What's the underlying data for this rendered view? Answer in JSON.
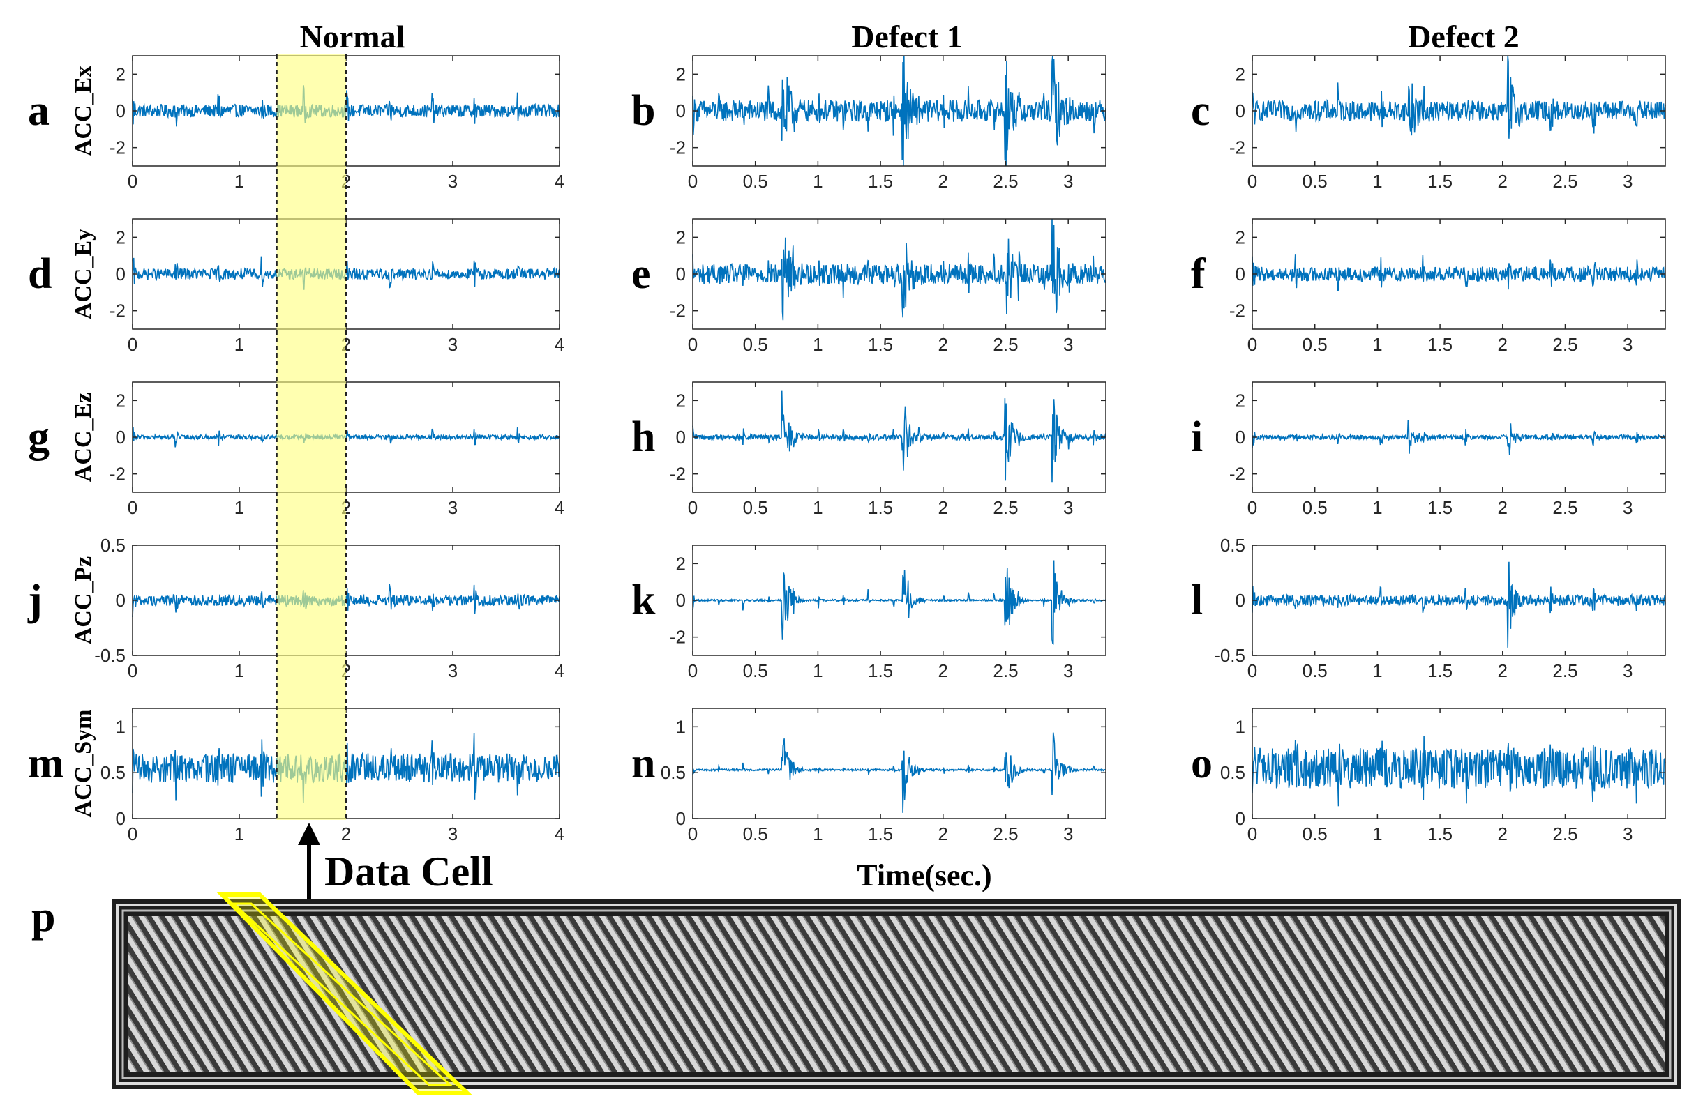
{
  "figure": {
    "column_titles": [
      "Normal",
      "Defect 1",
      "Defect 2"
    ],
    "x_axis_label": "Time(sec.)",
    "callout_label": "Data Cell",
    "panel_p_label": "p",
    "highlight_window_sec": [
      1.35,
      2.0
    ],
    "colors": {
      "signal": "#0072BD",
      "highlight": "#FFFF80",
      "highlight_edge": "#FFFF00",
      "axes": "#262626"
    }
  },
  "chart_data": [
    {
      "panel": "a",
      "type": "line",
      "row": 0,
      "col": 0,
      "ylabel": "ACC_Ex",
      "xlim": [
        0,
        4
      ],
      "ylim": [
        -3,
        3
      ],
      "xticks": [
        "0",
        "1",
        "2",
        "3",
        "4"
      ],
      "yticks": [
        "-2",
        "0",
        "2"
      ],
      "series": [
        {
          "name": "",
          "signal": {
            "base": 0,
            "noise": 0.35,
            "peak_amp": 1.1,
            "period": 0.4,
            "peak_times": []
          }
        }
      ]
    },
    {
      "panel": "b",
      "type": "line",
      "row": 0,
      "col": 1,
      "xlim": [
        0,
        3.3
      ],
      "ylim": [
        -3,
        3
      ],
      "xticks": [
        "0",
        "0.5",
        "1",
        "1.5",
        "2",
        "2.5",
        "3"
      ],
      "yticks": [
        "-2",
        "0",
        "2"
      ],
      "series": [
        {
          "name": "",
          "signal": {
            "base": 0,
            "noise": 0.6,
            "peak_amp": 1.0,
            "period": 0.2,
            "peak_times": [
              0.72,
              1.68,
              2.5,
              2.88
            ],
            "burst_amp": 3.0
          }
        }
      ]
    },
    {
      "panel": "c",
      "type": "line",
      "row": 0,
      "col": 2,
      "xlim": [
        0,
        3.3
      ],
      "ylim": [
        -3,
        3
      ],
      "xticks": [
        "0",
        "0.5",
        "1",
        "1.5",
        "2",
        "2.5",
        "3"
      ],
      "yticks": [
        "-2",
        "0",
        "2"
      ],
      "series": [
        {
          "name": "",
          "signal": {
            "base": 0,
            "noise": 0.55,
            "peak_amp": 1.2,
            "period": 0.34,
            "peak_times": [
              1.25,
              2.05
            ],
            "burst_amp": 2.3
          }
        }
      ]
    },
    {
      "panel": "d",
      "type": "line",
      "row": 1,
      "col": 0,
      "ylabel": "ACC_Ey",
      "xlim": [
        0,
        4
      ],
      "ylim": [
        -3,
        3
      ],
      "xticks": [
        "0",
        "1",
        "2",
        "3",
        "4"
      ],
      "yticks": [
        "-2",
        "0",
        "2"
      ],
      "series": [
        {
          "name": "",
          "signal": {
            "base": 0,
            "noise": 0.3,
            "peak_amp": 0.9,
            "period": 0.4,
            "peak_times": []
          }
        }
      ]
    },
    {
      "panel": "e",
      "type": "line",
      "row": 1,
      "col": 1,
      "xlim": [
        0,
        3.3
      ],
      "ylim": [
        -3,
        3
      ],
      "xticks": [
        "0",
        "0.5",
        "1",
        "1.5",
        "2",
        "2.5",
        "3"
      ],
      "yticks": [
        "-2",
        "0",
        "2"
      ],
      "series": [
        {
          "name": "",
          "signal": {
            "base": 0,
            "noise": 0.55,
            "peak_amp": 0.9,
            "period": 0.2,
            "peak_times": [
              0.72,
              1.68,
              2.5,
              2.88
            ],
            "burst_amp": 2.9
          }
        }
      ]
    },
    {
      "panel": "f",
      "type": "line",
      "row": 1,
      "col": 2,
      "xlim": [
        0,
        3.3
      ],
      "ylim": [
        -3,
        3
      ],
      "xticks": [
        "0",
        "0.5",
        "1",
        "1.5",
        "2",
        "2.5",
        "3"
      ],
      "yticks": [
        "-2",
        "0",
        "2"
      ],
      "series": [
        {
          "name": "",
          "signal": {
            "base": 0,
            "noise": 0.4,
            "peak_amp": 0.8,
            "period": 0.34,
            "peak_times": []
          }
        }
      ]
    },
    {
      "panel": "g",
      "type": "line",
      "row": 2,
      "col": 0,
      "ylabel": "ACC_Ez",
      "xlim": [
        0,
        4
      ],
      "ylim": [
        -3,
        3
      ],
      "xticks": [
        "0",
        "1",
        "2",
        "3",
        "4"
      ],
      "yticks": [
        "-2",
        "0",
        "2"
      ],
      "series": [
        {
          "name": "",
          "signal": {
            "base": 0,
            "noise": 0.12,
            "peak_amp": 0.5,
            "period": 0.4,
            "peak_times": []
          }
        }
      ]
    },
    {
      "panel": "h",
      "type": "line",
      "row": 2,
      "col": 1,
      "xlim": [
        0,
        3.3
      ],
      "ylim": [
        -3,
        3
      ],
      "xticks": [
        "0",
        "0.5",
        "1",
        "1.5",
        "2",
        "2.5",
        "3"
      ],
      "yticks": [
        "-2",
        "0",
        "2"
      ],
      "series": [
        {
          "name": "",
          "signal": {
            "base": 0,
            "noise": 0.15,
            "peak_amp": 0.5,
            "period": 0.2,
            "peak_times": [
              0.72,
              1.68,
              2.5,
              2.88
            ],
            "burst_amp": 2.6
          }
        }
      ]
    },
    {
      "panel": "i",
      "type": "line",
      "row": 2,
      "col": 2,
      "xlim": [
        0,
        3.3
      ],
      "ylim": [
        -3,
        3
      ],
      "xticks": [
        "0",
        "0.5",
        "1",
        "1.5",
        "2",
        "2.5",
        "3"
      ],
      "yticks": [
        "-2",
        "0",
        "2"
      ],
      "series": [
        {
          "name": "",
          "signal": {
            "base": 0,
            "noise": 0.12,
            "peak_amp": 0.5,
            "period": 0.34,
            "peak_times": [
              1.25,
              2.05
            ],
            "burst_amp": 0.9
          }
        }
      ]
    },
    {
      "panel": "j",
      "type": "line",
      "row": 3,
      "col": 0,
      "ylabel": "ACC_Pz",
      "xlim": [
        0,
        4
      ],
      "ylim": [
        -0.5,
        0.5
      ],
      "xticks": [
        "0",
        "1",
        "2",
        "3",
        "4"
      ],
      "yticks": [
        "-0.5",
        "0",
        "0.5"
      ],
      "series": [
        {
          "name": "",
          "signal": {
            "base": 0,
            "noise": 0.05,
            "peak_amp": 0.12,
            "period": 0.4,
            "peak_times": []
          }
        }
      ]
    },
    {
      "panel": "k",
      "type": "line",
      "row": 3,
      "col": 1,
      "xlim": [
        0,
        3.3
      ],
      "ylim": [
        -3,
        3
      ],
      "xticks": [
        "0",
        "0.5",
        "1",
        "1.5",
        "2",
        "2.5",
        "3"
      ],
      "yticks": [
        "-2",
        "0",
        "2"
      ],
      "series": [
        {
          "name": "",
          "signal": {
            "base": 0,
            "noise": 0.05,
            "peak_amp": 0.6,
            "period": 0.2,
            "peak_times": [
              0.72,
              1.68,
              2.5,
              2.88
            ],
            "burst_amp": 2.9
          }
        }
      ]
    },
    {
      "panel": "l",
      "type": "line",
      "row": 3,
      "col": 2,
      "xlim": [
        0,
        3.3
      ],
      "ylim": [
        -0.5,
        0.5
      ],
      "xticks": [
        "0",
        "0.5",
        "1",
        "1.5",
        "2",
        "2.5",
        "3"
      ],
      "yticks": [
        "-0.5",
        "0",
        "0.5"
      ],
      "series": [
        {
          "name": "",
          "signal": {
            "base": 0,
            "noise": 0.05,
            "peak_amp": 0.1,
            "period": 0.34,
            "peak_times": [
              2.05
            ],
            "burst_amp": 0.3
          }
        }
      ]
    },
    {
      "panel": "m",
      "type": "line",
      "row": 4,
      "col": 0,
      "ylabel": "ACC_Sym",
      "xlim": [
        0,
        4
      ],
      "ylim": [
        0,
        1.2
      ],
      "xticks": [
        "0",
        "1",
        "2",
        "3",
        "4"
      ],
      "yticks": [
        "0",
        "0.5",
        "1"
      ],
      "series": [
        {
          "name": "",
          "signal": {
            "base": 0.55,
            "noise": 0.16,
            "peak_amp": 0.25,
            "period": 0.4,
            "peak_times": []
          }
        }
      ]
    },
    {
      "panel": "n",
      "type": "line",
      "row": 4,
      "col": 1,
      "xlim": [
        0,
        3.3
      ],
      "ylim": [
        0,
        1.2
      ],
      "xticks": [
        "0",
        "0.5",
        "1",
        "1.5",
        "2",
        "2.5",
        "3"
      ],
      "yticks": [
        "0",
        "0.5",
        "1"
      ],
      "series": [
        {
          "name": "",
          "signal": {
            "base": 0.53,
            "noise": 0.01,
            "peak_amp": 0.08,
            "period": 0.2,
            "peak_times": [
              0.72,
              1.68,
              2.5,
              2.88
            ],
            "burst_amp": 0.48
          }
        }
      ]
    },
    {
      "panel": "o",
      "type": "line",
      "row": 4,
      "col": 2,
      "xlim": [
        0,
        3.3
      ],
      "ylim": [
        0,
        1.2
      ],
      "xticks": [
        "0",
        "0.5",
        "1",
        "1.5",
        "2",
        "2.5",
        "3"
      ],
      "yticks": [
        "0",
        "0.5",
        "1"
      ],
      "series": [
        {
          "name": "",
          "signal": {
            "base": 0.55,
            "noise": 0.22,
            "peak_amp": 0.3,
            "period": 0.34,
            "peak_times": []
          }
        }
      ]
    }
  ]
}
